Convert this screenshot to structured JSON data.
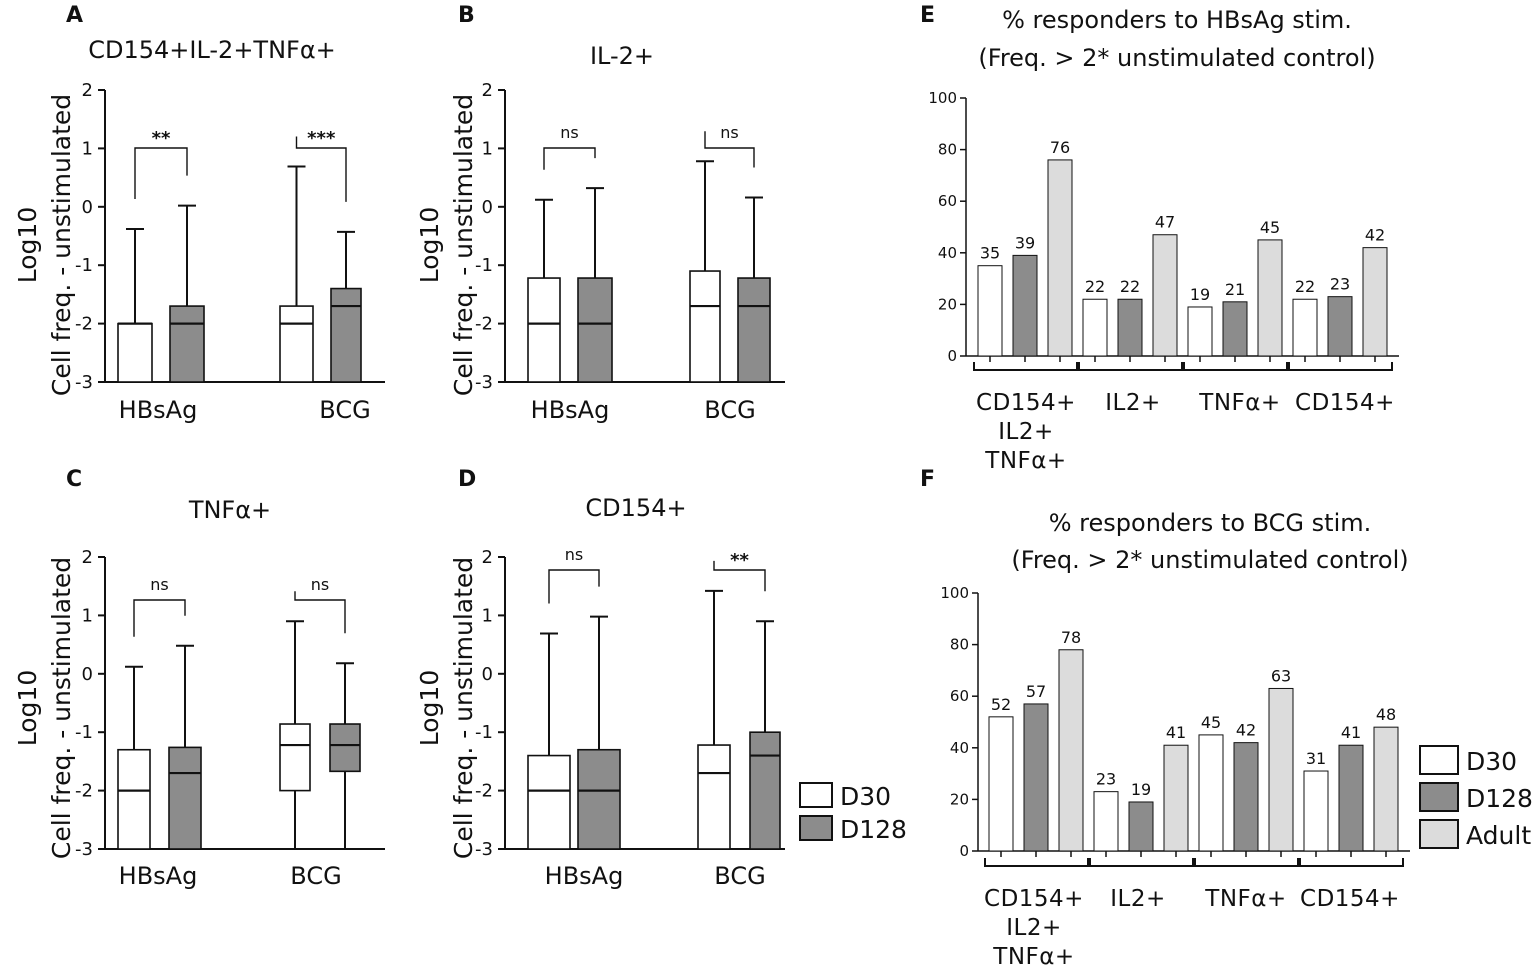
{
  "chart_data": [
    {
      "panel": "A",
      "type": "boxplot",
      "title": "CD154+IL-2+TNFα+",
      "ylabel": [
        "Log10",
        "Cell freq. - unstimulated"
      ],
      "ylim": [
        -3,
        2
      ],
      "yticks": [
        "2",
        "1",
        "0",
        "-1",
        "-2",
        "-3"
      ],
      "categories": [
        "HBsAg",
        "BCG"
      ],
      "series": [
        {
          "name": "D30",
          "boxes": [
            {
              "min": -3,
              "q1": -3,
              "median": -2,
              "q3": -2,
              "max": -0.38
            },
            {
              "min": -3,
              "q1": -3,
              "median": -2,
              "q3": -1.7,
              "max": 0.69
            }
          ]
        },
        {
          "name": "D128",
          "boxes": [
            {
              "min": -3,
              "q1": -3,
              "median": -2,
              "q3": -1.7,
              "max": 0.02
            },
            {
              "min": -3,
              "q1": -3,
              "median": -1.7,
              "q3": -1.4,
              "max": -0.43
            }
          ]
        }
      ],
      "significance": [
        "**",
        "***"
      ]
    },
    {
      "panel": "B",
      "type": "boxplot",
      "title": "IL-2+",
      "ylabel": [
        "Log10",
        "Cell freq. - unstimulated"
      ],
      "ylim": [
        -3,
        2
      ],
      "yticks": [
        "2",
        "1",
        "0",
        "-1",
        "-2",
        "-3"
      ],
      "categories": [
        "HBsAg",
        "BCG"
      ],
      "series": [
        {
          "name": "D30",
          "boxes": [
            {
              "min": -3,
              "q1": -3,
              "median": -2,
              "q3": -1.22,
              "max": 0.12
            },
            {
              "min": -3,
              "q1": -3,
              "median": -1.7,
              "q3": -1.1,
              "max": 0.78
            }
          ]
        },
        {
          "name": "D128",
          "boxes": [
            {
              "min": -3,
              "q1": -3,
              "median": -2,
              "q3": -1.22,
              "max": 0.32
            },
            {
              "min": -3,
              "q1": -3,
              "median": -1.7,
              "q3": -1.22,
              "max": 0.16
            }
          ]
        }
      ],
      "significance": [
        "ns",
        "ns"
      ]
    },
    {
      "panel": "C",
      "type": "boxplot",
      "title": "TNFα+",
      "ylabel": [
        "Log10",
        "Cell freq. - unstimulated"
      ],
      "ylim": [
        -3,
        2
      ],
      "yticks": [
        "2",
        "1",
        "0",
        "-1",
        "-2",
        "-3"
      ],
      "categories": [
        "HBsAg",
        "BCG"
      ],
      "series": [
        {
          "name": "D30",
          "boxes": [
            {
              "min": -3,
              "q1": -3,
              "median": -2,
              "q3": -1.3,
              "max": 0.12
            },
            {
              "min": -3,
              "q1": -2,
              "median": -1.22,
              "q3": -0.86,
              "max": 0.9
            }
          ]
        },
        {
          "name": "D128",
          "boxes": [
            {
              "min": -3,
              "q1": -3,
              "median": -1.7,
              "q3": -1.26,
              "max": 0.48
            },
            {
              "min": -3,
              "q1": -1.67,
              "median": -1.22,
              "q3": -0.86,
              "max": 0.18
            }
          ]
        }
      ],
      "significance": [
        "ns",
        "ns"
      ]
    },
    {
      "panel": "D",
      "type": "boxplot",
      "title": "CD154+",
      "ylabel": [
        "Log10",
        "Cell freq. - unstimulated"
      ],
      "ylim": [
        -3,
        2
      ],
      "yticks": [
        "2",
        "1",
        "0",
        "-1",
        "-2",
        "-3"
      ],
      "categories": [
        "HBsAg",
        "BCG"
      ],
      "series": [
        {
          "name": "D30",
          "boxes": [
            {
              "min": -3,
              "q1": -3,
              "median": -2,
              "q3": -1.4,
              "max": 0.69
            },
            {
              "min": -3,
              "q1": -3,
              "median": -1.7,
              "q3": -1.22,
              "max": 1.42
            }
          ]
        },
        {
          "name": "D128",
          "boxes": [
            {
              "min": -3,
              "q1": -3,
              "median": -2,
              "q3": -1.3,
              "max": 0.98
            },
            {
              "min": -3,
              "q1": -3,
              "median": -1.4,
              "q3": -1.0,
              "max": 0.9
            }
          ]
        }
      ],
      "significance": [
        "ns",
        "**"
      ]
    },
    {
      "panel": "E",
      "type": "bar",
      "title": [
        "% responders to HBsAg stim.",
        "(Freq. > 2* unstimulated control)"
      ],
      "ylim": [
        0,
        100
      ],
      "yticks": [
        "100",
        "80",
        "60",
        "40",
        "20",
        "0"
      ],
      "categories": [
        [
          "CD154+",
          "IL2+",
          "TNFα+"
        ],
        [
          "IL2+"
        ],
        [
          "TNFα+"
        ],
        [
          "CD154+"
        ]
      ],
      "series": [
        {
          "name": "D30",
          "values": [
            35,
            22,
            19,
            22
          ]
        },
        {
          "name": "D128",
          "values": [
            39,
            22,
            21,
            23
          ]
        },
        {
          "name": "Adult",
          "values": [
            76,
            47,
            45,
            42
          ]
        }
      ]
    },
    {
      "panel": "F",
      "type": "bar",
      "title": [
        "% responders to BCG stim.",
        "(Freq. > 2* unstimulated control)"
      ],
      "ylim": [
        0,
        100
      ],
      "yticks": [
        "100",
        "80",
        "60",
        "40",
        "20",
        "0"
      ],
      "categories": [
        [
          "CD154+",
          "IL2+",
          "TNFα+"
        ],
        [
          "IL2+"
        ],
        [
          "TNFα+"
        ],
        [
          "CD154+"
        ]
      ],
      "series": [
        {
          "name": "D30",
          "values": [
            52,
            23,
            45,
            31
          ]
        },
        {
          "name": "D128",
          "values": [
            57,
            19,
            42,
            41
          ]
        },
        {
          "name": "Adult",
          "values": [
            78,
            41,
            63,
            48
          ]
        }
      ]
    }
  ],
  "legend_box": [
    "D30",
    "D128"
  ],
  "legend_bar": [
    "D30",
    "D128",
    "Adult"
  ],
  "colors": {
    "D30": "#ffffff",
    "D128": "#8c8c8c",
    "Adult": "#dcdcdc",
    "stroke": "#111111"
  }
}
